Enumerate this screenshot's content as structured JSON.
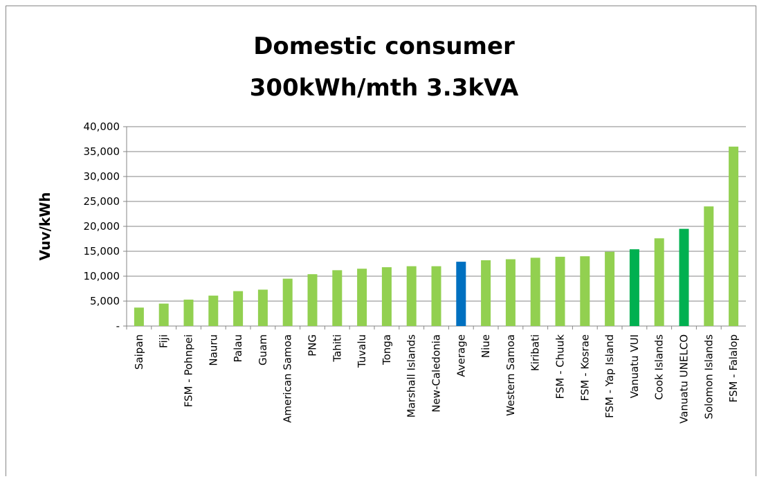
{
  "chart_data": {
    "type": "bar",
    "title": [
      "Domestic consumer",
      "300kWh/mth 3.3kVA"
    ],
    "y_label": "Vuv/kWh",
    "categories": [
      "Saipan",
      "Fiji",
      "FSM - Pohnpei",
      "Nauru",
      "Palau",
      "Guam",
      "American Samoa",
      "PNG",
      "Tahiti",
      "Tuvalu",
      "Tonga",
      "Marshall Islands",
      "New-Caledonia",
      "Average",
      "Niue",
      "Western Samoa",
      "Kiribati",
      "FSM - Chuuk",
      "FSM - Kosrae",
      "FSM - Yap Island",
      "Vanuatu VUI",
      "Cook Islands",
      "Vanuatu UNELCO",
      "Solomon Islands",
      "FSM - Falalop"
    ],
    "values": [
      3700,
      4500,
      5300,
      6100,
      7000,
      7300,
      9500,
      10400,
      11200,
      11500,
      11800,
      12000,
      12000,
      12900,
      13200,
      13400,
      13700,
      13900,
      14000,
      14900,
      15400,
      17600,
      19500,
      24000,
      36000
    ],
    "colors": [
      "#92d050",
      "#92d050",
      "#92d050",
      "#92d050",
      "#92d050",
      "#92d050",
      "#92d050",
      "#92d050",
      "#92d050",
      "#92d050",
      "#92d050",
      "#92d050",
      "#92d050",
      "#0070c0",
      "#92d050",
      "#92d050",
      "#92d050",
      "#92d050",
      "#92d050",
      "#92d050",
      "#00b050",
      "#92d050",
      "#00b050",
      "#92d050",
      "#92d050"
    ],
    "ylim": [
      0,
      40000
    ],
    "yticks": [
      {
        "value": 0,
        "label": "-"
      },
      {
        "value": 5000,
        "label": "5,000"
      },
      {
        "value": 10000,
        "label": "10,000"
      },
      {
        "value": 15000,
        "label": "15,000"
      },
      {
        "value": 20000,
        "label": "20,000"
      },
      {
        "value": 25000,
        "label": "25,000"
      },
      {
        "value": 30000,
        "label": "30,000"
      },
      {
        "value": 35000,
        "label": "35,000"
      },
      {
        "value": 40000,
        "label": "40,000"
      }
    ],
    "grid": true
  }
}
